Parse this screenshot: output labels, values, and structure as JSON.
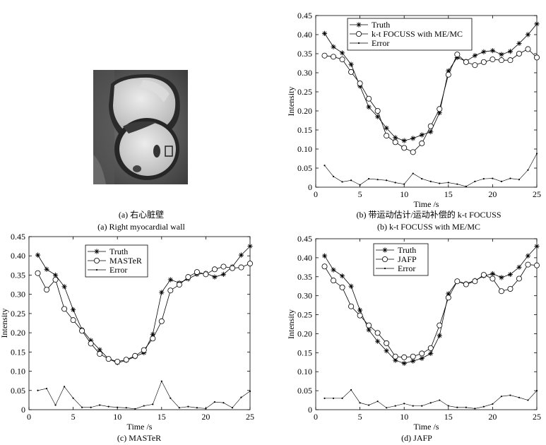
{
  "panel_a": {
    "caption_zh": "(a) 右心脏壁",
    "caption_en": "(a) Right myocardial wall"
  },
  "chart_data": [
    {
      "id": "b",
      "type": "line",
      "caption_zh": "(b) 带运动估计/运动补偿的 k-t FOCUSS",
      "caption_en": "(b) k-t FOCUSS with ME/MC",
      "xlabel": "Time /s",
      "ylabel": "Intensity",
      "xlim": [
        0,
        25
      ],
      "ylim": [
        0,
        0.45
      ],
      "xticks": [
        0,
        5,
        10,
        15,
        20,
        25
      ],
      "yticks": [
        0,
        0.05,
        0.1,
        0.15,
        0.2,
        0.25,
        0.3,
        0.35,
        0.4,
        0.45
      ],
      "ytick_labels": [
        "0",
        "0.05",
        "0.10",
        "0.15",
        "0.20",
        "0.25",
        "0.30",
        "0.35",
        "0.40",
        "0.45"
      ],
      "legend_position": "top-center",
      "x": [
        1,
        2,
        3,
        4,
        5,
        6,
        7,
        8,
        9,
        10,
        11,
        12,
        13,
        14,
        15,
        16,
        17,
        18,
        19,
        20,
        21,
        22,
        23,
        24,
        25
      ],
      "series": [
        {
          "name": "Truth",
          "marker": "star",
          "values": [
            0.403,
            0.368,
            0.352,
            0.322,
            0.265,
            0.21,
            0.185,
            0.155,
            0.13,
            0.122,
            0.128,
            0.137,
            0.145,
            0.195,
            0.305,
            0.34,
            0.33,
            0.345,
            0.355,
            0.358,
            0.348,
            0.356,
            0.377,
            0.4,
            0.428
          ]
        },
        {
          "name": "k-t FOCUSS with ME/MC",
          "marker": "circle",
          "values": [
            0.345,
            0.342,
            0.335,
            0.302,
            0.272,
            0.232,
            0.2,
            0.135,
            0.118,
            0.103,
            0.092,
            0.115,
            0.16,
            0.205,
            0.295,
            0.348,
            0.328,
            0.32,
            0.328,
            0.335,
            0.333,
            0.333,
            0.35,
            0.362,
            0.34
          ]
        },
        {
          "name": "Error",
          "marker": "dot",
          "values": [
            0.057,
            0.028,
            0.014,
            0.018,
            0.006,
            0.022,
            0.02,
            0.018,
            0.012,
            0.008,
            0.036,
            0.022,
            0.015,
            0.01,
            0.012,
            0.008,
            0.002,
            0.015,
            0.022,
            0.023,
            0.015,
            0.023,
            0.02,
            0.045,
            0.088
          ]
        }
      ]
    },
    {
      "id": "c",
      "type": "line",
      "caption_zh": "",
      "caption_en": "(c) MASTeR",
      "xlabel": "Time /s",
      "ylabel": "Intensity",
      "xlim": [
        0,
        25
      ],
      "ylim": [
        0,
        0.45
      ],
      "xticks": [
        0,
        5,
        10,
        15,
        20,
        25
      ],
      "yticks": [
        0,
        0.05,
        0.1,
        0.15,
        0.2,
        0.25,
        0.3,
        0.35,
        0.4,
        0.45
      ],
      "ytick_labels": [
        "0",
        "0.05",
        "0.10",
        "0.15",
        "0.20",
        "0.25",
        "0.30",
        "0.35",
        "0.40",
        "0.45"
      ],
      "legend_position": "top-center",
      "x": [
        1,
        2,
        3,
        4,
        5,
        6,
        7,
        8,
        9,
        10,
        11,
        12,
        13,
        14,
        15,
        16,
        17,
        18,
        19,
        20,
        21,
        22,
        23,
        24,
        25
      ],
      "series": [
        {
          "name": "Truth",
          "marker": "star",
          "values": [
            0.402,
            0.365,
            0.35,
            0.32,
            0.26,
            0.208,
            0.18,
            0.156,
            0.132,
            0.122,
            0.128,
            0.138,
            0.148,
            0.196,
            0.305,
            0.338,
            0.33,
            0.34,
            0.352,
            0.355,
            0.345,
            0.352,
            0.372,
            0.402,
            0.425
          ]
        },
        {
          "name": "MASTeR",
          "marker": "circle",
          "values": [
            0.355,
            0.312,
            0.338,
            0.262,
            0.233,
            0.205,
            0.172,
            0.145,
            0.132,
            0.125,
            0.13,
            0.14,
            0.155,
            0.185,
            0.23,
            0.31,
            0.325,
            0.345,
            0.358,
            0.352,
            0.365,
            0.372,
            0.368,
            0.37,
            0.38
          ]
        },
        {
          "name": "Error",
          "marker": "dot",
          "values": [
            0.05,
            0.055,
            0.012,
            0.06,
            0.03,
            0.006,
            0.006,
            0.012,
            0.008,
            0.006,
            0.005,
            0.002,
            0.01,
            0.014,
            0.074,
            0.03,
            0.005,
            0.008,
            0.005,
            0.003,
            0.02,
            0.018,
            0.005,
            0.032,
            0.048
          ]
        }
      ]
    },
    {
      "id": "d",
      "type": "line",
      "caption_zh": "",
      "caption_en": "(d) JAFP",
      "xlabel": "Time /s",
      "ylabel": "Intensity",
      "xlim": [
        0,
        25
      ],
      "ylim": [
        0,
        0.45
      ],
      "xticks": [
        0,
        5,
        10,
        15,
        20,
        25
      ],
      "yticks": [
        0,
        0.05,
        0.1,
        0.15,
        0.2,
        0.25,
        0.3,
        0.35,
        0.4,
        0.45
      ],
      "ytick_labels": [
        "0",
        "0.05",
        "0.10",
        "0.15",
        "0.20",
        "0.25",
        "0.30",
        "0.35",
        "0.40",
        "0.45"
      ],
      "legend_position": "top-center",
      "x": [
        1,
        2,
        3,
        4,
        5,
        6,
        7,
        8,
        9,
        10,
        11,
        12,
        13,
        14,
        15,
        16,
        17,
        18,
        19,
        20,
        21,
        22,
        23,
        24,
        25
      ],
      "series": [
        {
          "name": "Truth",
          "marker": "star",
          "values": [
            0.405,
            0.368,
            0.352,
            0.325,
            0.262,
            0.21,
            0.18,
            0.155,
            0.13,
            0.122,
            0.128,
            0.135,
            0.148,
            0.195,
            0.305,
            0.338,
            0.332,
            0.34,
            0.352,
            0.358,
            0.348,
            0.356,
            0.375,
            0.405,
            0.43
          ]
        },
        {
          "name": "JAFP",
          "marker": "circle",
          "values": [
            0.377,
            0.34,
            0.322,
            0.272,
            0.248,
            0.222,
            0.202,
            0.175,
            0.14,
            0.138,
            0.14,
            0.148,
            0.162,
            0.222,
            0.295,
            0.338,
            0.33,
            0.338,
            0.355,
            0.345,
            0.312,
            0.318,
            0.345,
            0.382,
            0.38
          ]
        },
        {
          "name": "Error",
          "marker": "dot",
          "values": [
            0.03,
            0.03,
            0.03,
            0.052,
            0.018,
            0.012,
            0.022,
            0.005,
            0.01,
            0.016,
            0.01,
            0.01,
            0.018,
            0.025,
            0.01,
            0.006,
            0.006,
            0.003,
            0.008,
            0.015,
            0.035,
            0.038,
            0.032,
            0.025,
            0.05
          ]
        }
      ]
    }
  ]
}
